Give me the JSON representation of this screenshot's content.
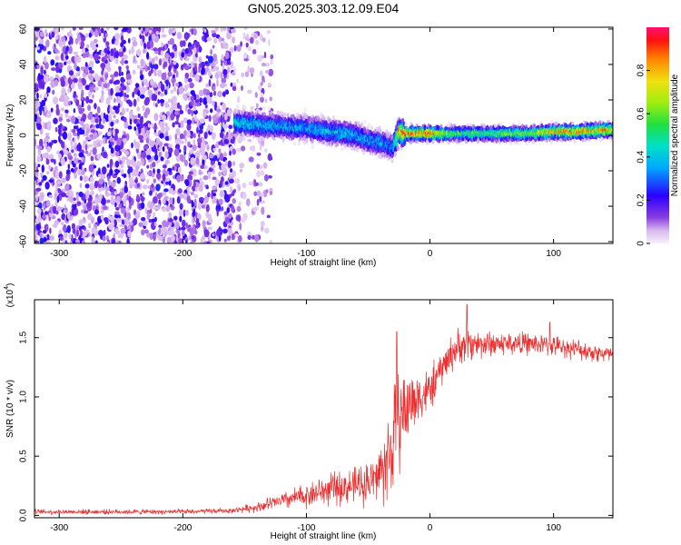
{
  "title": "GN05.2025.303.12.09.E04",
  "chart_data": [
    {
      "type": "heatmap",
      "name": "spectrogram",
      "title": "GN05.2025.303.12.09.E04",
      "xlabel": "Height of straight line (km)",
      "ylabel": "Frequency (Hz)",
      "xlim": [
        -320,
        148
      ],
      "ylim": [
        -61,
        61
      ],
      "xticks": [
        -300,
        -200,
        -100,
        0,
        100
      ],
      "yticks": [
        -60,
        -40,
        -20,
        0,
        20,
        40,
        60
      ],
      "signal_band": {
        "x": [
          -158,
          -140,
          -120,
          -100,
          -80,
          -60,
          -50,
          -40,
          -30,
          -25,
          -20,
          -10,
          0,
          20,
          40,
          60,
          80,
          100,
          120,
          140,
          148
        ],
        "center_hz": [
          7,
          6,
          5,
          4,
          2,
          0,
          -3,
          -4,
          -7,
          2,
          1,
          1,
          1,
          1,
          1,
          1,
          1,
          2,
          2,
          3,
          3
        ],
        "peak_amplitude": [
          0.45,
          0.45,
          0.4,
          0.42,
          0.45,
          0.45,
          0.4,
          0.42,
          0.35,
          0.9,
          0.95,
          0.9,
          0.95,
          0.6,
          0.6,
          0.65,
          0.65,
          0.9,
          0.95,
          0.9,
          0.85
        ]
      },
      "noise_region_x": [
        -320,
        -158
      ],
      "colorbar": {
        "label": "Normalized spectral amplitude",
        "range": [
          0,
          1
        ],
        "ticks": [
          0.0,
          0.2,
          0.4,
          0.6,
          0.8
        ]
      }
    },
    {
      "type": "line",
      "name": "snr",
      "title": "",
      "xlabel": "Height of straight line (km)",
      "ylabel": "SNR (10 * v/v)",
      "yscale_label": "(x10",
      "yscale_exponent": "4",
      "xlim": [
        -320,
        148
      ],
      "ylim": [
        -0.02,
        1.82
      ],
      "xticks": [
        -300,
        -200,
        -100,
        0,
        100
      ],
      "yticks": [
        0.0,
        0.5,
        1.0,
        1.5
      ],
      "color": "#ee2e2e",
      "envelope": {
        "x": [
          -320,
          -200,
          -160,
          -140,
          -120,
          -100,
          -80,
          -60,
          -45,
          -35,
          -30,
          -25,
          -20,
          -10,
          0,
          10,
          20,
          30,
          40,
          60,
          80,
          100,
          120,
          148
        ],
        "mean": [
          0.03,
          0.03,
          0.04,
          0.07,
          0.12,
          0.17,
          0.22,
          0.25,
          0.3,
          0.45,
          0.6,
          0.8,
          0.9,
          1.0,
          1.05,
          1.25,
          1.4,
          1.45,
          1.45,
          1.45,
          1.45,
          1.43,
          1.4,
          1.35
        ],
        "spread": [
          0.02,
          0.02,
          0.02,
          0.04,
          0.07,
          0.1,
          0.13,
          0.15,
          0.2,
          0.35,
          0.5,
          0.4,
          0.35,
          0.22,
          0.18,
          0.15,
          0.15,
          0.14,
          0.12,
          0.1,
          0.09,
          0.08,
          0.08,
          0.08
        ]
      },
      "peaks": [
        {
          "x": -27,
          "y": 1.55
        },
        {
          "x": 30,
          "y": 1.78
        },
        {
          "x": 97,
          "y": 1.63
        }
      ]
    }
  ]
}
